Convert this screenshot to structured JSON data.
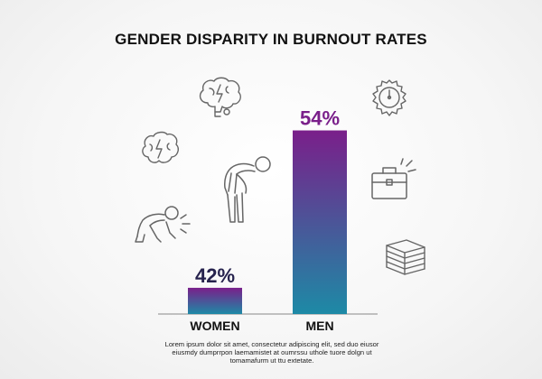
{
  "chart_title": "GENDER DISPARITY IN BURNOUT RATES",
  "footnote": "Lorem ipsum dolor sit amet, consectetur adipiscing elit, sed duo eiusor eiusmdy dumprrpon laemamistet at oumrssu uthole tuore dolgn ut tomamafurm ut ttu extetate.",
  "colors": {
    "bar_top": "#7a1f8a",
    "bar_bottom": "#1d8aa6",
    "value_label": "#26224d",
    "icon_stroke": "#666666"
  },
  "icons": [
    "brain-lightning-icon",
    "brain-lightning-icon",
    "exhausted-person-icon",
    "collapsed-person-icon",
    "stopwatch-icon",
    "briefcase-icon",
    "paper-stack-icon"
  ],
  "chart_data": {
    "type": "bar",
    "title": "GENDER DISPARITY IN BURNOUT RATES",
    "categories": [
      "WOMEN",
      "MEN"
    ],
    "values": [
      42,
      54
    ],
    "value_labels": [
      "42%",
      "54%"
    ],
    "xlabel": "",
    "ylabel": "",
    "ylim": [
      40,
      55
    ],
    "grid": false,
    "legend": "none"
  }
}
